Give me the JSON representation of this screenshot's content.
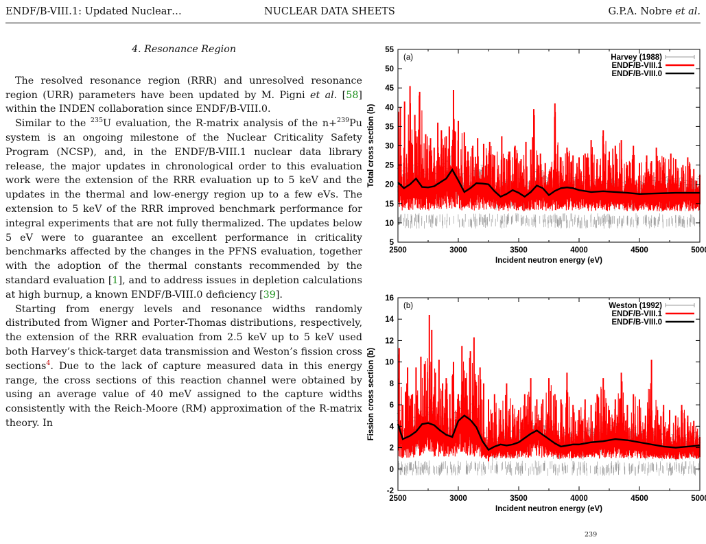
{
  "header": {
    "left": "ENDF/B-VIII.1: Updated Nuclear…",
    "center": "NUCLEAR DATA SHEETS",
    "right_authors": "G.P.A. Nobre",
    "right_etal": "et al."
  },
  "section": {
    "heading": "4.   Resonance Region"
  },
  "body": {
    "p1": {
      "a": "The resolved resonance region (RRR) and unresolved resonance region (URR) parameters have been updated by M. Pigni ",
      "etal": "et al.",
      "b": " [",
      "ref": "58",
      "c": "] within the INDEN collaboration since ENDF/B-VIII.0."
    },
    "p2": {
      "a": "Similar to the ",
      "sup1": "235",
      "b": "U evaluation, the R-matrix analysis of the n+",
      "sup2": "239",
      "c": "Pu system is an ongoing milestone of the Nuclear Criticality Safety Program (NCSP), and, in the ENDF/B-VIII.1 nuclear data library release, the major updates in chronological order to this evaluation work were the extension of the RRR evaluation up to 5 keV and the updates in the thermal and low-energy region up to a few eVs. The extension to 5 keV of the RRR improved benchmark performance for integral experiments that are not fully thermalized. The updates below 5 eV were to guarantee an excellent performance in criticality benchmarks affected by the changes in the PFNS evaluation, together with the adoption of the thermal constants recommended by the standard evaluation [",
      "ref1": "1",
      "d": "], and to address issues in depletion calculations at high burnup, a known ENDF/B-VIII.0 deficiency [",
      "ref2": "39",
      "e": "]."
    },
    "p3": {
      "a": "Starting from energy levels and resonance widths randomly distributed from Wigner and Porter-Thomas distributions, respectively, the extension of the RRR evaluation from 2.5 keV up to 5 keV used both Harvey’s thick-target data transmission and Weston’s fission cross sections",
      "fn": "4",
      "b": ". Due to the lack of capture measured data in this energy range, the cross sections of this reaction channel were obtained by using an average value of 40 meV assigned to the capture widths consistently with the Reich-Moore (RM) approximation of the R-matrix theory. In"
    }
  },
  "caption_fragment": "239",
  "colors": {
    "exp": "#9a9a9a",
    "viii1": "#ff0000",
    "viii0": "#000000"
  },
  "chart_data": [
    {
      "type": "line",
      "panel_label": "(a)",
      "xlabel": "Incident neutron energy (eV)",
      "ylabel": "Total cross section (b)",
      "xlim": [
        2500,
        5000
      ],
      "ylim": [
        5,
        55
      ],
      "xticks": [
        2500,
        3000,
        3500,
        4000,
        4500,
        5000
      ],
      "yticks": [
        5,
        10,
        15,
        20,
        25,
        30,
        35,
        40,
        45,
        50,
        55
      ],
      "legend": [
        "Harvey (1988)",
        "ENDF/B-VIII.1",
        "ENDF/B-VIII.0"
      ],
      "legend_position": "top-right",
      "series": [
        {
          "name": "ENDF/B-VIII.0",
          "x": [
            2500,
            2550,
            2600,
            2650,
            2700,
            2750,
            2800,
            2850,
            2900,
            2950,
            3000,
            3050,
            3100,
            3150,
            3200,
            3250,
            3300,
            3350,
            3400,
            3450,
            3500,
            3550,
            3600,
            3650,
            3700,
            3750,
            3800,
            3850,
            3900,
            3950,
            4000,
            4100,
            4200,
            4300,
            4400,
            4500,
            4600,
            4700,
            4800,
            4900,
            5000
          ],
          "y": [
            20.5,
            19.0,
            20.0,
            21.5,
            19.3,
            19.2,
            19.5,
            20.5,
            21.5,
            23.8,
            21.0,
            18.0,
            19.0,
            20.3,
            20.2,
            20.0,
            18.2,
            16.8,
            17.5,
            18.5,
            17.8,
            16.8,
            18.0,
            19.7,
            19.0,
            17.2,
            18.3,
            19.0,
            19.2,
            19.0,
            18.5,
            18.0,
            18.2,
            18.0,
            17.8,
            17.5,
            17.6,
            17.7,
            17.8,
            17.8,
            17.8
          ]
        },
        {
          "name": "ENDF/B-VIII.1",
          "peaks": [
            [
              2520,
              40.0
            ],
            [
              2555,
              41.5
            ],
            [
              2600,
              45.5
            ],
            [
              2640,
              38.0
            ],
            [
              2680,
              44.0
            ],
            [
              2730,
              33.0
            ],
            [
              2770,
              32.0
            ],
            [
              2800,
              29.5
            ],
            [
              2830,
              36.0
            ],
            [
              2860,
              34.0
            ],
            [
              2900,
              32.5
            ],
            [
              2925,
              35.0
            ],
            [
              2960,
              44.5
            ],
            [
              3000,
              36.5
            ],
            [
              3050,
              33.5
            ],
            [
              3080,
              28.5
            ],
            [
              3120,
              30.0
            ],
            [
              3160,
              32.0
            ],
            [
              3210,
              30.5
            ],
            [
              3260,
              31.0
            ],
            [
              3300,
              27.5
            ],
            [
              3360,
              32.5
            ],
            [
              3400,
              26.5
            ],
            [
              3420,
              28.5
            ],
            [
              3470,
              30.0
            ],
            [
              3520,
              26.5
            ],
            [
              3560,
              31.0
            ],
            [
              3600,
              29.0
            ],
            [
              3625,
              39.5
            ],
            [
              3680,
              28.0
            ],
            [
              3720,
              25.5
            ],
            [
              3770,
              24.5
            ],
            [
              3800,
              41.0
            ],
            [
              3850,
              27.0
            ],
            [
              3900,
              29.5
            ],
            [
              3950,
              27.5
            ],
            [
              4000,
              27.0
            ],
            [
              4050,
              28.0
            ],
            [
              4100,
              31.5
            ],
            [
              4150,
              26.5
            ],
            [
              4200,
              34.0
            ],
            [
              4250,
              28.5
            ],
            [
              4300,
              30.0
            ],
            [
              4350,
              31.5
            ],
            [
              4400,
              25.0
            ],
            [
              4450,
              30.0
            ],
            [
              4500,
              25.5
            ],
            [
              4560,
              27.5
            ],
            [
              4600,
              26.0
            ],
            [
              4640,
              29.5
            ],
            [
              4700,
              27.0
            ],
            [
              4760,
              28.0
            ],
            [
              4800,
              26.5
            ],
            [
              4860,
              25.0
            ],
            [
              4900,
              27.0
            ],
            [
              4950,
              24.0
            ],
            [
              5000,
              22.5
            ]
          ],
          "baseline_min": 12.5
        }
      ]
    },
    {
      "type": "line",
      "panel_label": "(b)",
      "xlabel": "Incident neutron energy (eV)",
      "ylabel": "Fission cross section (b)",
      "xlim": [
        2500,
        5000
      ],
      "ylim": [
        -2,
        16
      ],
      "xticks": [
        2500,
        3000,
        3500,
        4000,
        4500,
        5000
      ],
      "yticks": [
        -2,
        0,
        2,
        4,
        6,
        8,
        10,
        12,
        14,
        16
      ],
      "legend": [
        "Weston (1992)",
        "ENDF/B-VIII.1",
        "ENDF/B-VIII.0"
      ],
      "legend_position": "top-right",
      "series": [
        {
          "name": "ENDF/B-VIII.0",
          "x": [
            2500,
            2540,
            2600,
            2650,
            2700,
            2750,
            2800,
            2850,
            2900,
            2950,
            3000,
            3050,
            3100,
            3150,
            3200,
            3250,
            3300,
            3350,
            3400,
            3450,
            3500,
            3550,
            3600,
            3650,
            3700,
            3750,
            3800,
            3850,
            3900,
            3950,
            4000,
            4100,
            4200,
            4300,
            4400,
            4500,
            4600,
            4700,
            4800,
            4900,
            5000
          ],
          "y": [
            4.2,
            2.8,
            3.1,
            3.5,
            4.2,
            4.3,
            4.1,
            3.6,
            3.2,
            3.0,
            4.5,
            5.0,
            4.6,
            3.9,
            2.6,
            1.8,
            2.1,
            2.3,
            2.2,
            2.3,
            2.5,
            2.9,
            3.3,
            3.6,
            3.2,
            2.8,
            2.4,
            2.1,
            2.2,
            2.3,
            2.3,
            2.5,
            2.6,
            2.8,
            2.7,
            2.5,
            2.3,
            2.1,
            2.0,
            2.1,
            2.2
          ]
        },
        {
          "name": "ENDF/B-VIII.1",
          "peaks": [
            [
              2510,
              11.3
            ],
            [
              2540,
              6.0
            ],
            [
              2580,
              9.5
            ],
            [
              2620,
              7.0
            ],
            [
              2650,
              9.5
            ],
            [
              2690,
              10.5
            ],
            [
              2720,
              9.8
            ],
            [
              2760,
              14.4
            ],
            [
              2780,
              13.0
            ],
            [
              2810,
              9.0
            ],
            [
              2840,
              10.2
            ],
            [
              2870,
              8.0
            ],
            [
              2900,
              8.5
            ],
            [
              2930,
              7.0
            ],
            [
              2960,
              10.0
            ],
            [
              3000,
              7.0
            ],
            [
              3030,
              11.5
            ],
            [
              3060,
              8.5
            ],
            [
              3100,
              11.0
            ],
            [
              3130,
              12.3
            ],
            [
              3180,
              9.5
            ],
            [
              3210,
              8.0
            ],
            [
              3250,
              6.5
            ],
            [
              3300,
              7.0
            ],
            [
              3350,
              5.5
            ],
            [
              3400,
              8.0
            ],
            [
              3450,
              6.0
            ],
            [
              3500,
              5.5
            ],
            [
              3550,
              7.0
            ],
            [
              3600,
              8.5
            ],
            [
              3650,
              6.5
            ],
            [
              3700,
              6.5
            ],
            [
              3750,
              8.5
            ],
            [
              3800,
              7.0
            ],
            [
              3850,
              6.5
            ],
            [
              3900,
              9.0
            ],
            [
              3950,
              6.0
            ],
            [
              4000,
              5.5
            ],
            [
              4050,
              6.5
            ],
            [
              4100,
              6.0
            ],
            [
              4150,
              7.0
            ],
            [
              4200,
              8.5
            ],
            [
              4250,
              5.5
            ],
            [
              4300,
              6.5
            ],
            [
              4350,
              9.0
            ],
            [
              4400,
              6.0
            ],
            [
              4450,
              7.0
            ],
            [
              4500,
              6.5
            ],
            [
              4550,
              5.0
            ],
            [
              4600,
              10.2
            ],
            [
              4650,
              5.5
            ],
            [
              4700,
              6.0
            ],
            [
              4750,
              5.5
            ],
            [
              4800,
              5.0
            ],
            [
              4850,
              6.0
            ],
            [
              4900,
              5.0
            ],
            [
              4950,
              4.5
            ],
            [
              5000,
              3.0
            ]
          ],
          "baseline_min": 0.8
        }
      ]
    }
  ]
}
